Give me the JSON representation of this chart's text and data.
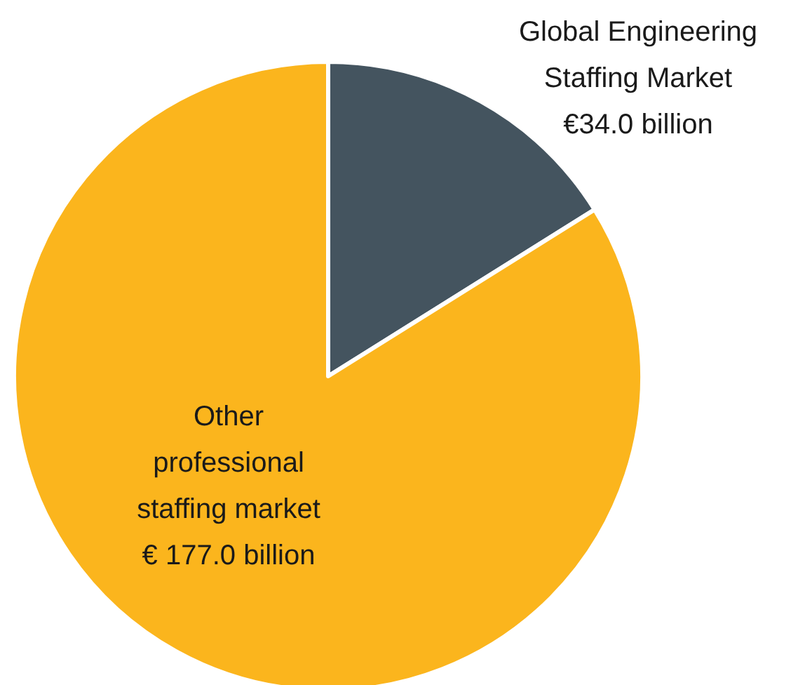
{
  "chart_data": {
    "type": "pie",
    "categories": [
      "Global Engineering Staffing Market",
      "Other professional staffing market"
    ],
    "values": [
      34.0,
      177.0
    ],
    "value_labels": [
      "€34.0 billion",
      "€ 177.0 billion"
    ],
    "colors": [
      "#44545f",
      "#fbb51d"
    ]
  }
}
